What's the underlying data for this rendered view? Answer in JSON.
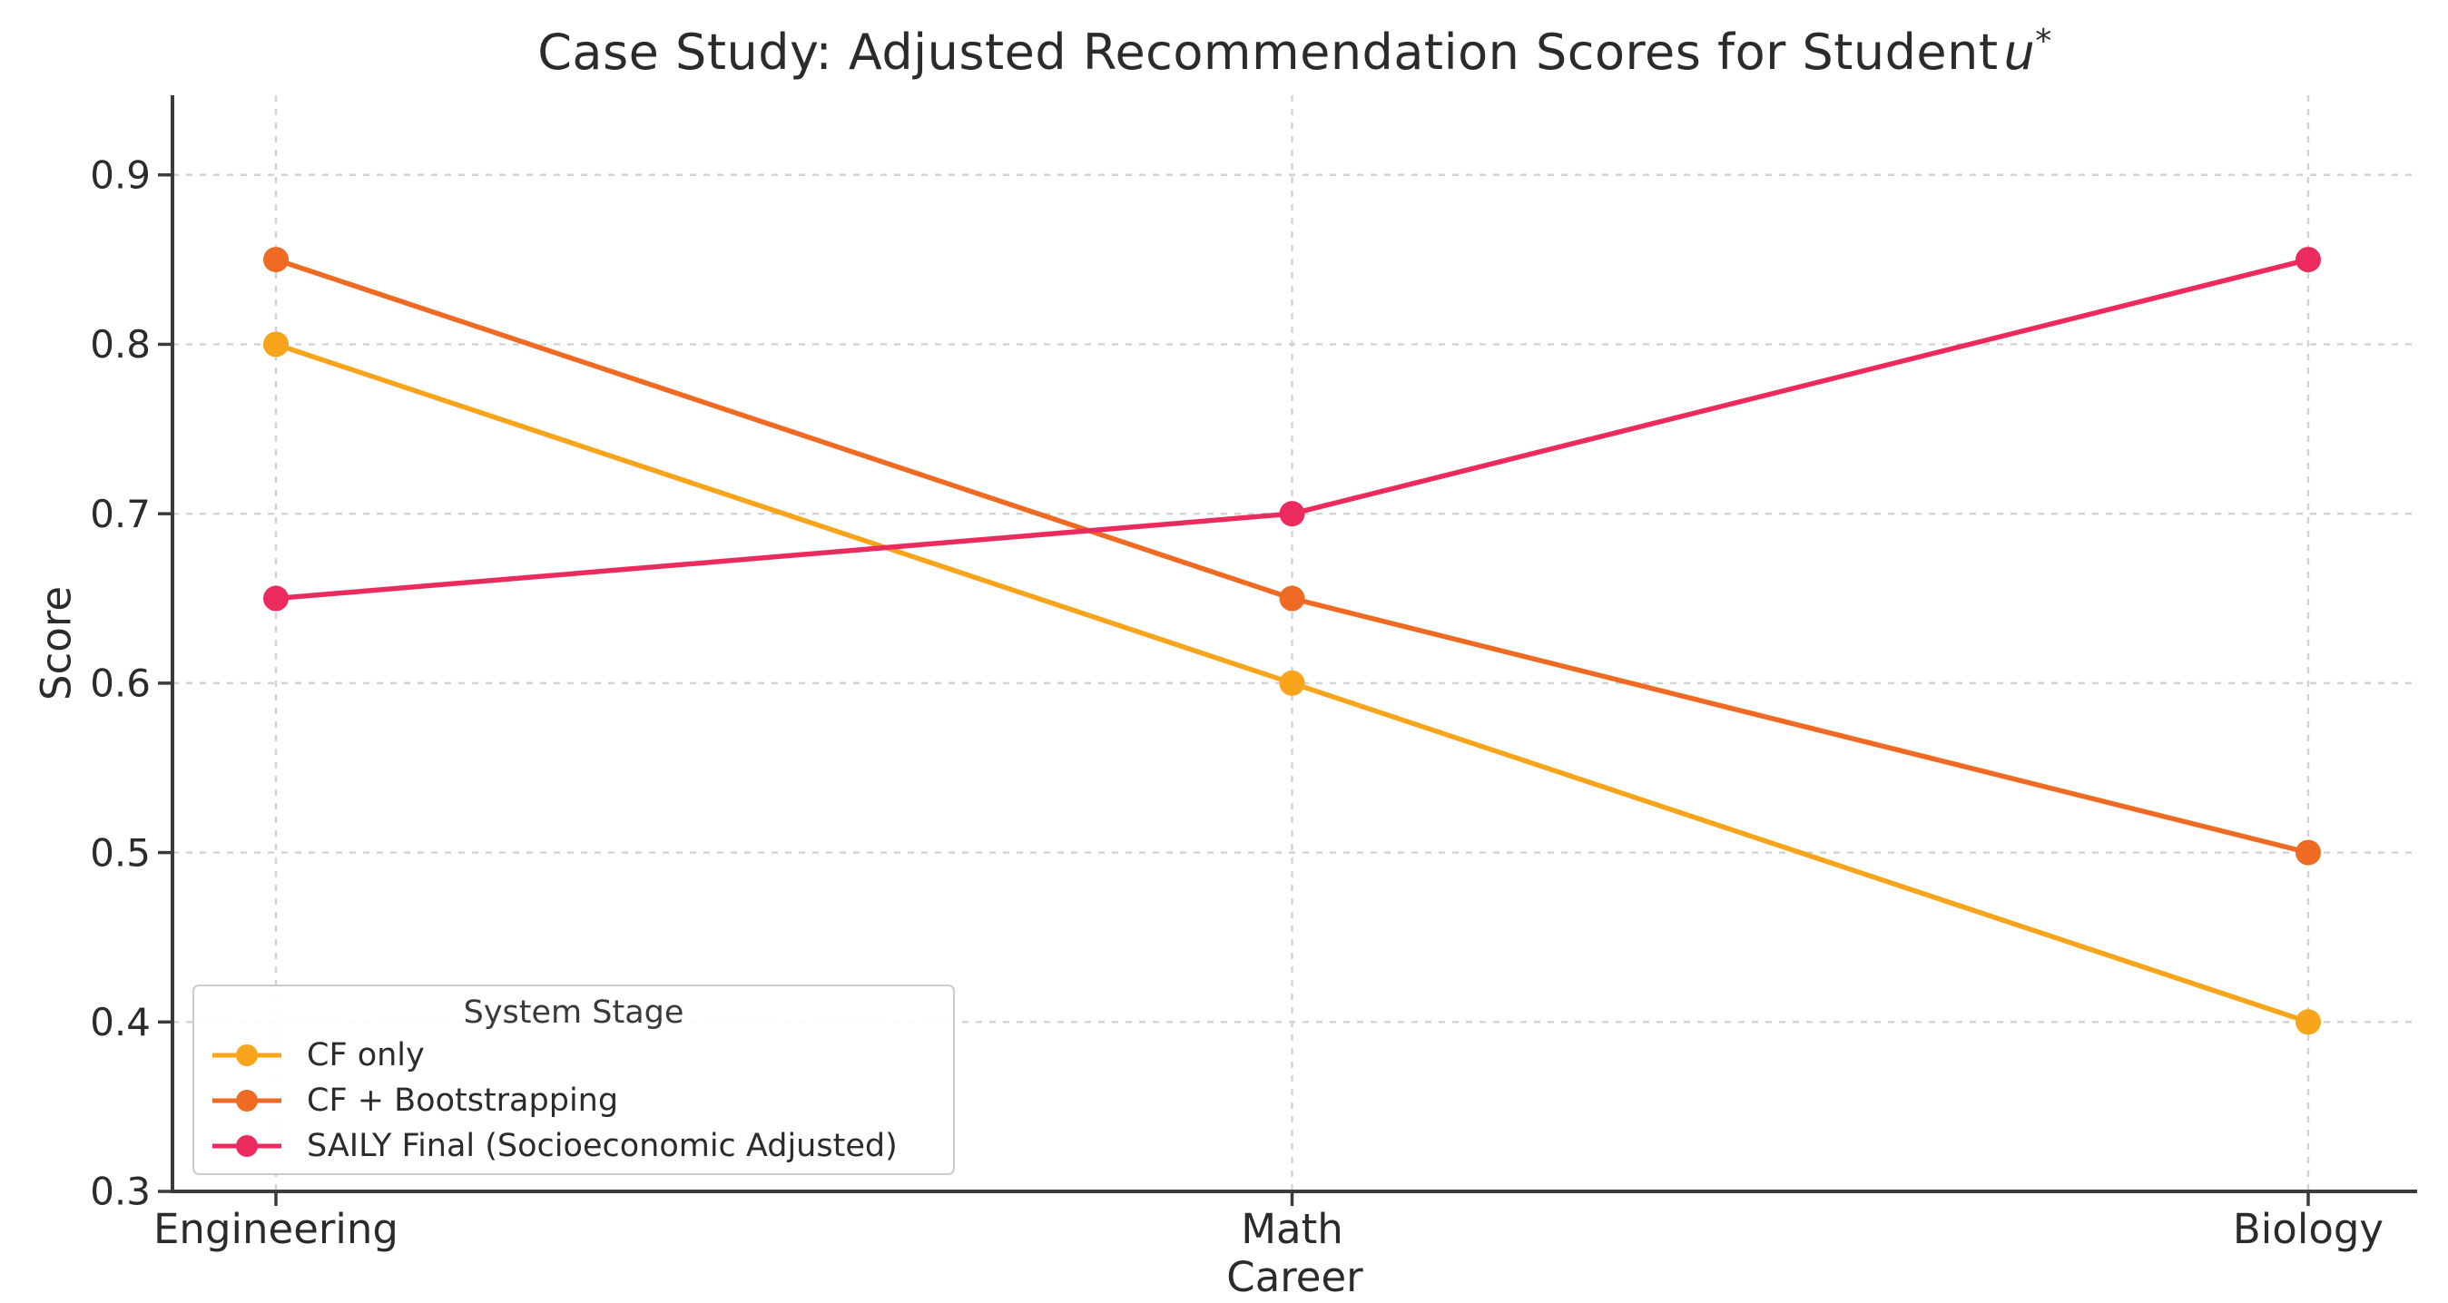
{
  "page": {
    "background": "#ffffff"
  },
  "chart_data": {
    "type": "line",
    "title": {
      "prefix": "Case Study: Adjusted Recommendation Scores for Student",
      "variable": "u",
      "superscript": "*",
      "plain": "Case Study: Adjusted Recommendation Scores for Student u*"
    },
    "xlabel": "Career",
    "ylabel": "Score",
    "categories": [
      "Engineering",
      "Math",
      "Biology"
    ],
    "series": [
      {
        "name": "CF only",
        "color": "#F8A51B",
        "values": [
          0.8,
          0.6,
          0.4
        ]
      },
      {
        "name": "CF + Bootstrapping",
        "color": "#EF6A22",
        "values": [
          0.85,
          0.65,
          0.5
        ]
      },
      {
        "name": "SAILY Final (Socioeconomic Adjusted)",
        "color": "#EB2B5E",
        "values": [
          0.65,
          0.7,
          0.85
        ]
      }
    ],
    "legend": {
      "title": "System Stage",
      "position": "lower-left"
    },
    "yticks": [
      "0.3",
      "0.4",
      "0.5",
      "0.6",
      "0.7",
      "0.8",
      "0.9"
    ],
    "ylim": [
      0.3,
      0.947
    ],
    "grid": true,
    "grid_style": "dashed",
    "marker": "circle",
    "colors": {
      "text": "#2b2b2b",
      "spine": "#3b3b3b",
      "grid": "#d2d2d2",
      "legend_border": "#cccccc"
    }
  }
}
